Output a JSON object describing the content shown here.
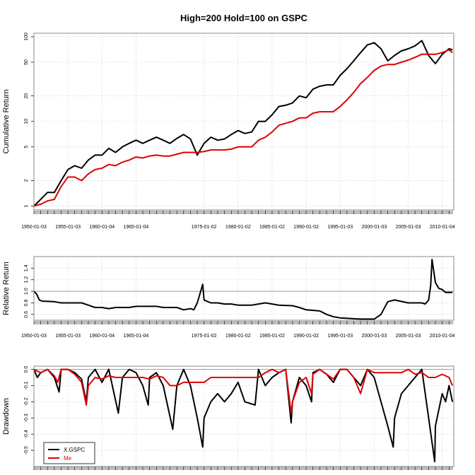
{
  "chart_data": [
    {
      "type": "line",
      "title": "High=200 Hold=100 on GSPC",
      "ylabel": "Cumulative Return",
      "xlabel": "",
      "scale": "log",
      "ylim": [
        0.9,
        110
      ],
      "xlim": [
        1950.0,
        2011.7
      ],
      "yticks": [
        1,
        2,
        5,
        10,
        20,
        50,
        100
      ],
      "ytick_labels": [
        "1",
        "2",
        "5",
        "10",
        "20",
        "50",
        "100"
      ],
      "xtick_labels": [
        "1950-01-03",
        "1955-01-03",
        "1960-01-04",
        "1965-01-04",
        "1975-01-02",
        "1980-01-02",
        "1985-01-02",
        "1990-01-02",
        "1995-01-03",
        "2000-01-03",
        "2005-01-03",
        "2010-01-04"
      ],
      "xtick_values": [
        1950,
        1955,
        1960,
        1965,
        1975,
        1980,
        1985,
        1990,
        1995,
        2000,
        2005,
        2010
      ],
      "grid": true,
      "series": [
        {
          "color": "#000000",
          "x": [
            1950,
            1951,
            1952,
            1953,
            1954,
            1955,
            1956,
            1957,
            1958,
            1959,
            1960,
            1961,
            1962,
            1963,
            1964,
            1965,
            1966,
            1967,
            1968,
            1969,
            1970,
            1971,
            1972,
            1973,
            1974,
            1975,
            1976,
            1977,
            1978,
            1979,
            1980,
            1981,
            1982,
            1983,
            1984,
            1985,
            1986,
            1987,
            1988,
            1989,
            1990,
            1991,
            1992,
            1993,
            1994,
            1995,
            1996,
            1997,
            1998,
            1999,
            2000,
            2001,
            2002,
            2003,
            2004,
            2005,
            2006,
            2007,
            2008,
            2009,
            2010,
            2011,
            2011.5
          ],
          "y": [
            1.0,
            1.2,
            1.45,
            1.45,
            2.0,
            2.7,
            3.0,
            2.8,
            3.5,
            4.0,
            4.0,
            4.8,
            4.3,
            5.0,
            5.5,
            6.0,
            5.5,
            6.0,
            6.5,
            6.0,
            5.5,
            6.3,
            7.0,
            6.2,
            4.0,
            5.5,
            6.5,
            6.0,
            6.2,
            7.0,
            7.8,
            7.2,
            7.5,
            10.0,
            10.0,
            12.0,
            15.0,
            15.5,
            16.5,
            20.0,
            19.0,
            24.0,
            26.0,
            27.0,
            27.0,
            35.0,
            42.0,
            52.0,
            65.0,
            80.0,
            85.0,
            72.0,
            52.0,
            60.0,
            68.0,
            72.0,
            78.0,
            90.0,
            60.0,
            48.0,
            62.0,
            72.0,
            70.0
          ]
        },
        {
          "color": "#e00000",
          "x": [
            1950,
            1951,
            1952,
            1953,
            1954,
            1955,
            1956,
            1957,
            1958,
            1959,
            1960,
            1961,
            1962,
            1963,
            1964,
            1965,
            1966,
            1967,
            1968,
            1969,
            1970,
            1971,
            1972,
            1973,
            1974,
            1975,
            1976,
            1977,
            1978,
            1979,
            1980,
            1981,
            1982,
            1983,
            1984,
            1985,
            1986,
            1987,
            1988,
            1989,
            1990,
            1991,
            1992,
            1993,
            1994,
            1995,
            1996,
            1997,
            1998,
            1999,
            2000,
            2001,
            2002,
            2003,
            2004,
            2005,
            2006,
            2007,
            2008,
            2009,
            2010,
            2011,
            2011.5
          ],
          "y": [
            1.0,
            1.05,
            1.15,
            1.2,
            1.7,
            2.2,
            2.2,
            2.0,
            2.4,
            2.7,
            2.8,
            3.1,
            3.0,
            3.3,
            3.5,
            3.8,
            3.7,
            3.9,
            4.0,
            3.9,
            3.9,
            4.1,
            4.3,
            4.3,
            4.3,
            4.4,
            4.6,
            4.6,
            4.6,
            4.7,
            5.0,
            5.0,
            5.0,
            6.0,
            6.5,
            7.5,
            9.0,
            9.5,
            10.0,
            11.0,
            11.0,
            12.5,
            13.0,
            13.0,
            13.0,
            15.0,
            18.0,
            22.0,
            28.0,
            33.0,
            40.0,
            45.0,
            47.0,
            47.0,
            50.0,
            53.0,
            57.0,
            62.0,
            62.0,
            62.0,
            65.0,
            70.0,
            65.0
          ]
        }
      ]
    },
    {
      "type": "line",
      "ylabel": "Relative Return",
      "xlabel": "",
      "ylim": [
        0.5,
        1.6
      ],
      "xlim": [
        1950.0,
        2011.7
      ],
      "yticks": [
        0.6,
        0.8,
        1.0,
        1.2,
        1.4
      ],
      "ytick_labels": [
        "0.6",
        "0.8",
        "1.0",
        "1.2",
        "1.4"
      ],
      "xtick_labels": [
        "1950-01-03",
        "1955-01-03",
        "1960-01-04",
        "1965-01-04",
        "1975-01-02",
        "1980-01-02",
        "1985-01-02",
        "1990-01-02",
        "1995-01-03",
        "2000-01-03",
        "2005-01-03",
        "2010-01-04"
      ],
      "xtick_values": [
        1950,
        1955,
        1960,
        1965,
        1975,
        1980,
        1985,
        1990,
        1995,
        2000,
        2005,
        2010
      ],
      "hline": 1.0,
      "grid": true,
      "series": [
        {
          "color": "#000000",
          "x": [
            1950,
            1950.4,
            1950.8,
            1951.2,
            1953,
            1954,
            1955,
            1957,
            1958,
            1959,
            1960,
            1961,
            1962,
            1963,
            1964,
            1965,
            1968,
            1969,
            1970,
            1971,
            1972,
            1973,
            1973.5,
            1974,
            1974.8,
            1975,
            1976,
            1977,
            1978,
            1979,
            1980,
            1981,
            1982,
            1983,
            1984,
            1985,
            1986,
            1988,
            1989,
            1990,
            1992,
            1993,
            1994,
            1995,
            1998,
            1999,
            2000,
            2001,
            2002,
            2003,
            2005,
            2007,
            2007.5,
            2008,
            2008.3,
            2008.5,
            2009,
            2009.5,
            2010,
            2010.5,
            2011.5
          ],
          "y": [
            1.0,
            0.95,
            0.85,
            0.83,
            0.82,
            0.8,
            0.8,
            0.8,
            0.76,
            0.72,
            0.72,
            0.7,
            0.72,
            0.72,
            0.72,
            0.74,
            0.74,
            0.72,
            0.72,
            0.72,
            0.68,
            0.7,
            0.68,
            0.8,
            1.12,
            0.85,
            0.8,
            0.8,
            0.78,
            0.78,
            0.76,
            0.76,
            0.76,
            0.78,
            0.8,
            0.78,
            0.76,
            0.75,
            0.72,
            0.68,
            0.66,
            0.6,
            0.56,
            0.54,
            0.52,
            0.52,
            0.52,
            0.6,
            0.82,
            0.85,
            0.8,
            0.8,
            0.78,
            0.85,
            1.1,
            1.55,
            1.15,
            1.05,
            1.03,
            0.98,
            0.98
          ]
        }
      ]
    },
    {
      "type": "line",
      "ylabel": "Drawdown",
      "xlabel": "",
      "ylim": [
        -0.6,
        0.02
      ],
      "xlim": [
        1950.0,
        2011.7
      ],
      "yticks": [
        0.0,
        -0.1,
        -0.2,
        -0.3,
        -0.4,
        -0.5
      ],
      "ytick_labels": [
        "0.0",
        "-0.1",
        "-0.2",
        "-0.3",
        "-0.4",
        "-0.5"
      ],
      "hline": 0.0,
      "grid": true,
      "legend": {
        "placement": "bottom-left",
        "entries": [
          "X.GSPC",
          "Me"
        ]
      },
      "series": [
        {
          "name": "X.GSPC",
          "color": "#000000",
          "x": [
            1950,
            1950.5,
            1951,
            1952,
            1953,
            1953.7,
            1954,
            1955,
            1956,
            1957,
            1957.7,
            1958,
            1959,
            1960,
            1961,
            1962.4,
            1963,
            1964,
            1965,
            1966,
            1966.8,
            1967,
            1968,
            1969,
            1970.4,
            1971,
            1972,
            1973,
            1974,
            1974.8,
            1975,
            1976,
            1977,
            1978,
            1979,
            1980,
            1981,
            1982.5,
            1983,
            1984,
            1985,
            1986,
            1987,
            1987.8,
            1988,
            1989,
            1990,
            1990.8,
            1991,
            1992,
            1993,
            1994,
            1995,
            1996,
            1997,
            1998,
            1999,
            2000,
            2001,
            2002,
            2002.8,
            2003,
            2004,
            2005,
            2006,
            2007,
            2008,
            2008.9,
            2009,
            2009.5,
            2010,
            2010.5,
            2011,
            2011.5
          ],
          "y": [
            0.0,
            -0.05,
            -0.02,
            0.0,
            -0.05,
            -0.14,
            0.0,
            0.0,
            -0.02,
            -0.06,
            -0.2,
            -0.05,
            0.0,
            -0.08,
            0.0,
            -0.27,
            -0.05,
            0.0,
            -0.02,
            -0.1,
            -0.22,
            -0.05,
            -0.02,
            -0.1,
            -0.37,
            -0.1,
            0.0,
            -0.1,
            -0.3,
            -0.48,
            -0.3,
            -0.2,
            -0.15,
            -0.2,
            -0.15,
            -0.08,
            -0.2,
            -0.22,
            0.0,
            -0.1,
            -0.05,
            -0.02,
            0.0,
            -0.33,
            -0.2,
            -0.05,
            -0.1,
            -0.2,
            -0.02,
            0.0,
            -0.03,
            -0.08,
            0.0,
            0.0,
            -0.05,
            -0.1,
            0.0,
            -0.05,
            -0.2,
            -0.35,
            -0.48,
            -0.3,
            -0.15,
            -0.1,
            -0.05,
            0.0,
            -0.3,
            -0.57,
            -0.35,
            -0.25,
            -0.15,
            -0.2,
            -0.1,
            -0.2
          ]
        },
        {
          "name": "Me",
          "color": "#e00000",
          "x": [
            1950,
            1951,
            1952,
            1953,
            1953.5,
            1954,
            1955,
            1956,
            1957,
            1957.7,
            1958,
            1959,
            1960,
            1961,
            1962,
            1963,
            1965,
            1966,
            1967,
            1968,
            1969,
            1970,
            1971,
            1972,
            1973,
            1974,
            1975,
            1976,
            1977,
            1978,
            1979,
            1980,
            1981,
            1982,
            1983,
            1984,
            1985,
            1986,
            1987,
            1987.8,
            1988,
            1989,
            1990,
            1990.8,
            1991,
            1992,
            1993,
            1994,
            1995,
            1996,
            1997,
            1998,
            1999,
            2000,
            2001,
            2002,
            2003,
            2004,
            2005,
            2006,
            2007,
            2008,
            2009,
            2010,
            2011,
            2011.5
          ],
          "y": [
            0.0,
            -0.02,
            0.0,
            -0.04,
            -0.08,
            0.0,
            0.0,
            -0.03,
            -0.08,
            -0.22,
            -0.1,
            -0.05,
            -0.06,
            -0.04,
            -0.05,
            -0.05,
            -0.05,
            -0.05,
            -0.06,
            -0.04,
            -0.05,
            -0.1,
            -0.1,
            -0.08,
            -0.08,
            -0.08,
            -0.08,
            -0.05,
            -0.05,
            -0.05,
            -0.05,
            -0.05,
            -0.05,
            -0.05,
            -0.05,
            -0.02,
            0.0,
            -0.02,
            0.0,
            -0.27,
            -0.2,
            -0.08,
            -0.05,
            -0.15,
            -0.03,
            0.0,
            -0.03,
            -0.06,
            0.0,
            0.0,
            -0.05,
            -0.15,
            0.0,
            -0.02,
            -0.02,
            -0.02,
            -0.02,
            -0.02,
            0.0,
            -0.03,
            -0.02,
            -0.05,
            -0.05,
            -0.03,
            -0.05,
            -0.1
          ]
        }
      ]
    }
  ]
}
